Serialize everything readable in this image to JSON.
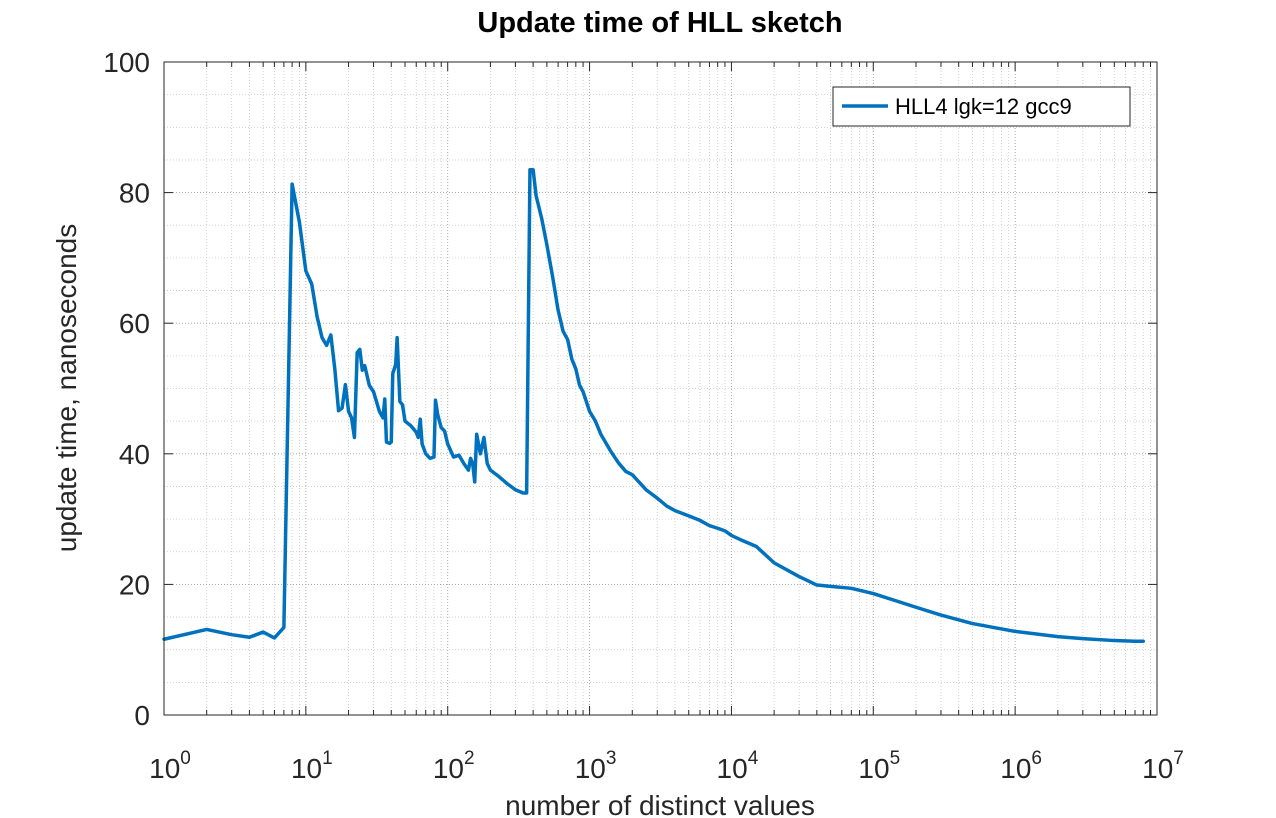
{
  "chart_data": {
    "type": "line",
    "title": "Update time of HLL sketch",
    "xlabel": "number of distinct values",
    "ylabel": "update time, nanoseconds",
    "x_scale": "log",
    "xlim": [
      1,
      10000000
    ],
    "ylim": [
      0,
      100
    ],
    "grid": true,
    "minor_grid": true,
    "legend_position": "top-right",
    "x_ticks": [
      {
        "base": "10",
        "exp": "0",
        "value": 1
      },
      {
        "base": "10",
        "exp": "1",
        "value": 10
      },
      {
        "base": "10",
        "exp": "2",
        "value": 100
      },
      {
        "base": "10",
        "exp": "3",
        "value": 1000
      },
      {
        "base": "10",
        "exp": "4",
        "value": 10000
      },
      {
        "base": "10",
        "exp": "5",
        "value": 100000
      },
      {
        "base": "10",
        "exp": "6",
        "value": 1000000
      },
      {
        "base": "10",
        "exp": "7",
        "value": 10000000
      }
    ],
    "y_ticks": [
      "0",
      "20",
      "40",
      "60",
      "80",
      "100"
    ],
    "series": [
      {
        "name": "HLL4 lgk=12 gcc9",
        "color": "#0072BD",
        "points": [
          [
            1,
            11.6
          ],
          [
            2,
            13.1
          ],
          [
            3,
            12.3
          ],
          [
            4,
            11.9
          ],
          [
            5,
            12.7
          ],
          [
            6,
            11.8
          ],
          [
            7,
            13.4
          ],
          [
            8,
            81.3
          ],
          [
            9,
            75.5
          ],
          [
            10,
            68.0
          ],
          [
            11,
            66.0
          ],
          [
            12,
            61.0
          ],
          [
            13,
            57.8
          ],
          [
            14,
            56.6
          ],
          [
            15,
            58.2
          ],
          [
            16,
            53.0
          ],
          [
            17,
            46.6
          ],
          [
            18,
            47.0
          ],
          [
            19,
            50.6
          ],
          [
            20,
            46.5
          ],
          [
            21,
            45.5
          ],
          [
            22,
            42.5
          ],
          [
            23,
            55.5
          ],
          [
            24,
            56.0
          ],
          [
            25,
            52.8
          ],
          [
            26,
            53.5
          ],
          [
            28,
            50.5
          ],
          [
            30,
            49.5
          ],
          [
            33,
            46.5
          ],
          [
            35,
            45.5
          ],
          [
            36,
            48.4
          ],
          [
            37,
            41.8
          ],
          [
            39,
            41.6
          ],
          [
            40,
            41.8
          ],
          [
            41,
            52.3
          ],
          [
            43,
            53.7
          ],
          [
            44,
            57.8
          ],
          [
            46,
            48.0
          ],
          [
            48,
            47.5
          ],
          [
            50,
            45.0
          ],
          [
            55,
            44.3
          ],
          [
            60,
            43.3
          ],
          [
            62,
            42.5
          ],
          [
            64,
            45.3
          ],
          [
            66,
            41.5
          ],
          [
            70,
            40.0
          ],
          [
            75,
            39.3
          ],
          [
            80,
            39.5
          ],
          [
            82,
            48.2
          ],
          [
            85,
            46.0
          ],
          [
            90,
            44.0
          ],
          [
            95,
            43.5
          ],
          [
            100,
            41.5
          ],
          [
            110,
            39.5
          ],
          [
            120,
            39.8
          ],
          [
            130,
            38.5
          ],
          [
            140,
            37.5
          ],
          [
            145,
            39.3
          ],
          [
            150,
            38.5
          ],
          [
            155,
            35.7
          ],
          [
            160,
            43.0
          ],
          [
            170,
            40.0
          ],
          [
            180,
            42.5
          ],
          [
            190,
            38.5
          ],
          [
            200,
            37.5
          ],
          [
            230,
            36.5
          ],
          [
            260,
            35.5
          ],
          [
            300,
            34.5
          ],
          [
            340,
            34.0
          ],
          [
            360,
            34.0
          ],
          [
            380,
            83.5
          ],
          [
            400,
            83.5
          ],
          [
            420,
            79.5
          ],
          [
            460,
            76.0
          ],
          [
            500,
            72.0
          ],
          [
            550,
            67.0
          ],
          [
            600,
            62.0
          ],
          [
            650,
            58.8
          ],
          [
            700,
            57.5
          ],
          [
            750,
            54.5
          ],
          [
            800,
            53.0
          ],
          [
            850,
            50.5
          ],
          [
            900,
            49.5
          ],
          [
            1000,
            46.5
          ],
          [
            1100,
            45.0
          ],
          [
            1200,
            43.0
          ],
          [
            1400,
            40.5
          ],
          [
            1600,
            38.6
          ],
          [
            1800,
            37.3
          ],
          [
            2000,
            36.8
          ],
          [
            2500,
            34.5
          ],
          [
            3000,
            33.2
          ],
          [
            3500,
            32.0
          ],
          [
            4000,
            31.3
          ],
          [
            5000,
            30.5
          ],
          [
            6000,
            29.8
          ],
          [
            7000,
            29.0
          ],
          [
            8000,
            28.6
          ],
          [
            9000,
            28.2
          ],
          [
            10000,
            27.5
          ],
          [
            12000,
            26.7
          ],
          [
            15000,
            25.8
          ],
          [
            20000,
            23.3
          ],
          [
            30000,
            21.2
          ],
          [
            40000,
            19.9
          ],
          [
            50000,
            19.7
          ],
          [
            70000,
            19.4
          ],
          [
            100000,
            18.6
          ],
          [
            200000,
            16.5
          ],
          [
            300000,
            15.3
          ],
          [
            500000,
            14.0
          ],
          [
            1000000,
            12.8
          ],
          [
            2000000,
            12.0
          ],
          [
            3000000,
            11.7
          ],
          [
            5000000,
            11.4
          ],
          [
            7000000,
            11.3
          ],
          [
            8000000,
            11.3
          ]
        ]
      }
    ]
  }
}
